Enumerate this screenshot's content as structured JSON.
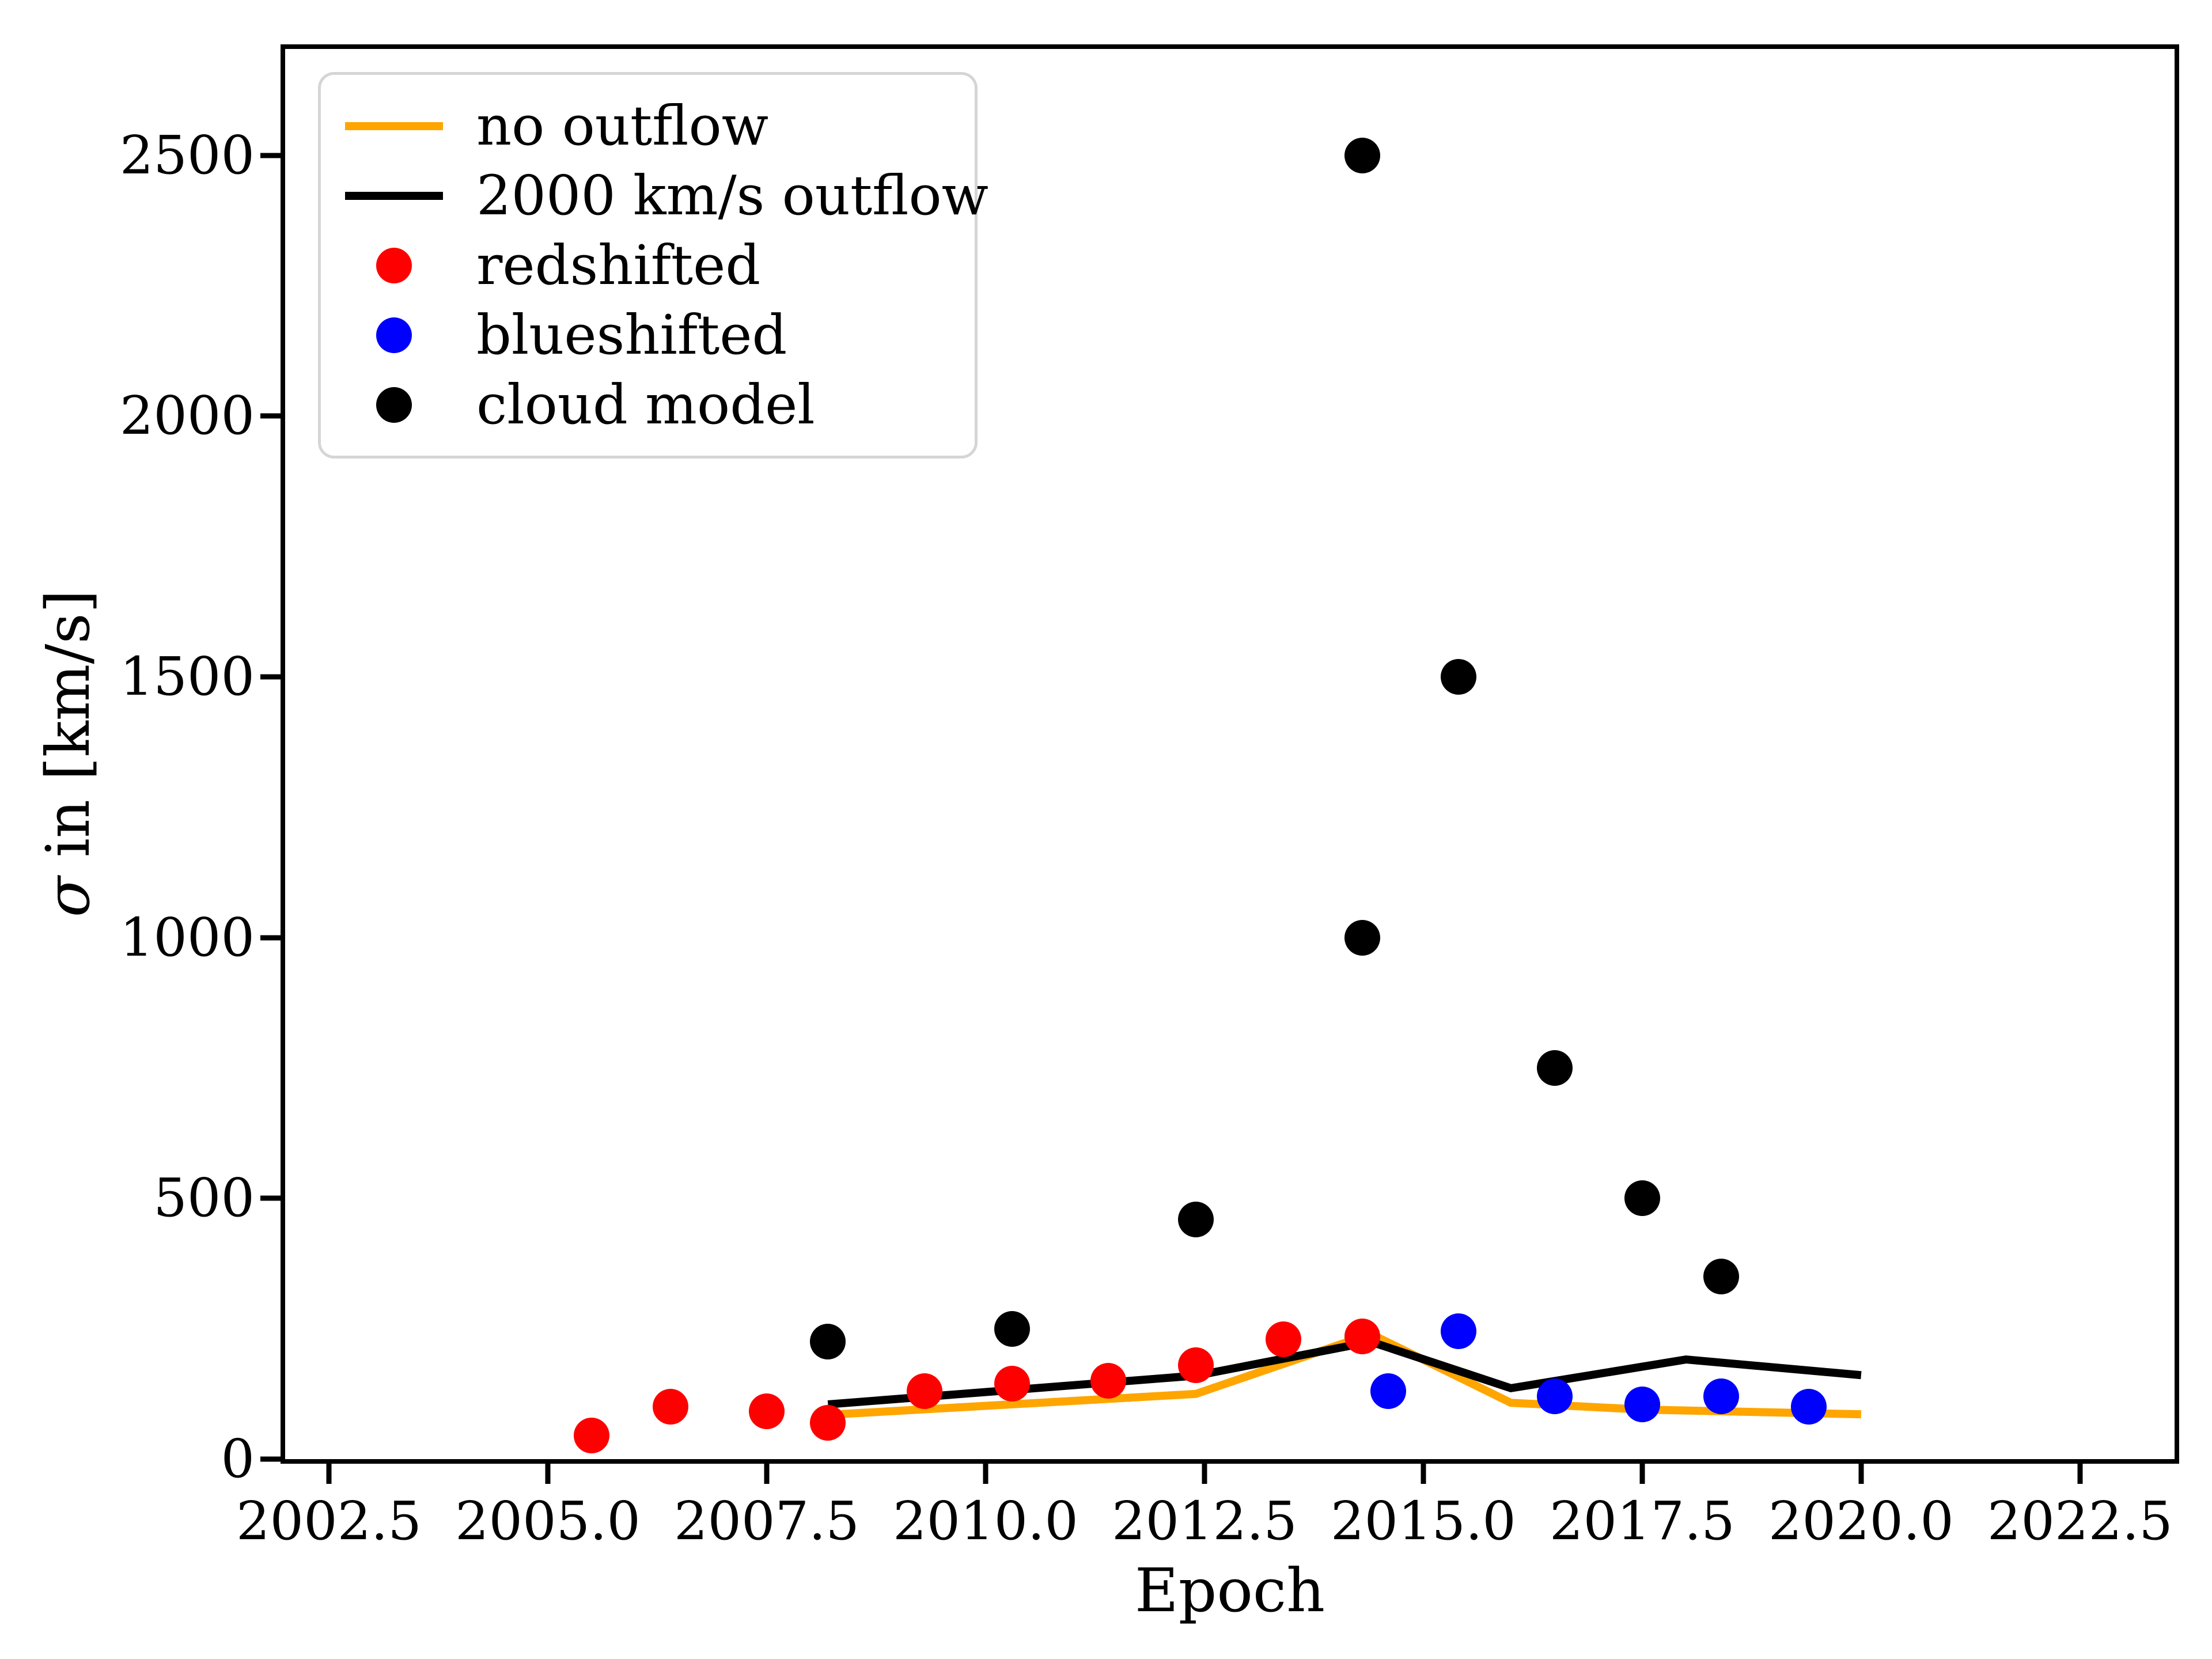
{
  "axes": {
    "xlabel": "Epoch",
    "ylabel_sigma": "σ",
    "ylabel_rest": " in [km/s]",
    "x_tick_labels": [
      "2002.5",
      "2005.0",
      "2007.5",
      "2010.0",
      "2012.5",
      "2015.0",
      "2017.5",
      "2020.0",
      "2022.5"
    ],
    "y_tick_labels": [
      "0",
      "500",
      "1000",
      "1500",
      "2000",
      "2500"
    ],
    "xlim": [
      2002.0,
      2023.58
    ],
    "ylim": [
      0,
      2704
    ],
    "grid": false
  },
  "legend": {
    "position": "upper-left",
    "items": [
      {
        "label": "no outflow",
        "marker": "line",
        "color": "#FFA500"
      },
      {
        "label": "2000 km/s outflow",
        "marker": "line",
        "color": "#000000"
      },
      {
        "label": "redshifted",
        "marker": "dot",
        "color": "#FF0000"
      },
      {
        "label": "blueshifted",
        "marker": "dot",
        "color": "#0000FF"
      },
      {
        "label": "cloud model",
        "marker": "dot",
        "color": "#000000"
      }
    ]
  },
  "chart_data": {
    "type": "scatter",
    "title": "",
    "xlabel": "Epoch",
    "ylabel": "σ in [km/s]",
    "series": [
      {
        "name": "no outflow",
        "type": "line",
        "color": "#FFA500",
        "points": [
          [
            2008.2,
            85
          ],
          [
            2012.4,
            125
          ],
          [
            2014.4,
            240
          ],
          [
            2016.0,
            108
          ],
          [
            2017.5,
            95
          ],
          [
            2020.0,
            86
          ]
        ]
      },
      {
        "name": "2000 km/s outflow",
        "type": "line",
        "color": "#000000",
        "points": [
          [
            2008.2,
            105
          ],
          [
            2012.4,
            160
          ],
          [
            2014.4,
            225
          ],
          [
            2016.0,
            136
          ],
          [
            2018.0,
            191
          ],
          [
            2020.0,
            161
          ]
        ]
      },
      {
        "name": "redshifted",
        "type": "scatter",
        "color": "#FF0000",
        "points": [
          [
            2005.5,
            45
          ],
          [
            2006.4,
            100
          ],
          [
            2007.5,
            92
          ],
          [
            2008.2,
            70
          ],
          [
            2009.3,
            130
          ],
          [
            2010.3,
            145
          ],
          [
            2011.4,
            150
          ],
          [
            2012.4,
            180
          ],
          [
            2013.4,
            230
          ],
          [
            2014.3,
            235
          ]
        ]
      },
      {
        "name": "blueshifted",
        "type": "scatter",
        "color": "#0000FF",
        "points": [
          [
            2014.6,
            130
          ],
          [
            2015.4,
            245
          ],
          [
            2016.5,
            120
          ],
          [
            2017.5,
            105
          ],
          [
            2018.4,
            120
          ],
          [
            2019.4,
            100
          ]
        ]
      },
      {
        "name": "cloud model",
        "type": "scatter",
        "color": "#000000",
        "points": [
          [
            2008.2,
            225
          ],
          [
            2010.3,
            250
          ],
          [
            2012.4,
            460
          ],
          [
            2014.3,
            2500
          ],
          [
            2014.3,
            1000
          ],
          [
            2015.4,
            1500
          ],
          [
            2016.5,
            750
          ],
          [
            2017.5,
            500
          ],
          [
            2018.4,
            350
          ]
        ]
      }
    ]
  }
}
